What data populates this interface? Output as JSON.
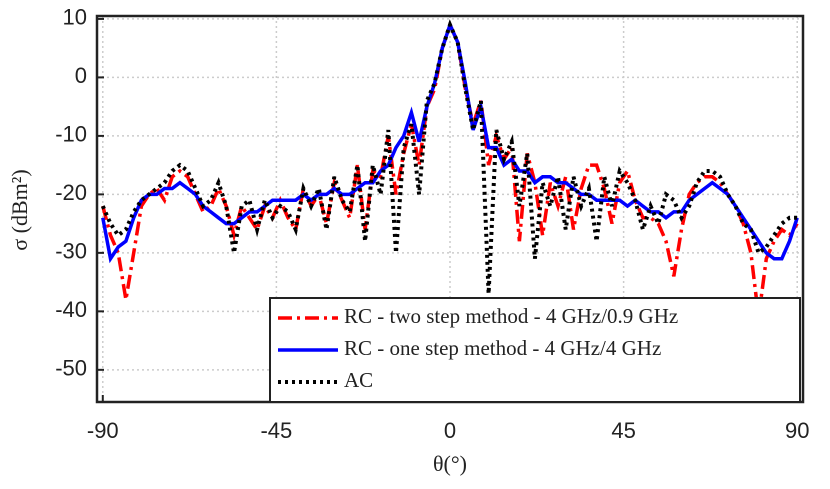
{
  "chart_data": {
    "type": "line",
    "xlabel": "θ(°)",
    "ylabel": "σ (dBm²)",
    "xlim": [
      -91.5,
      91.5
    ],
    "ylim": [
      -55.5,
      10.5
    ],
    "xticks": [
      -90,
      -45,
      0,
      45,
      90
    ],
    "yticks": [
      -50,
      -40,
      -30,
      -20,
      -10,
      0,
      10
    ],
    "grid": true,
    "legend": "lower center",
    "x": [
      -90,
      -88,
      -86,
      -84,
      -82,
      -80,
      -78,
      -76,
      -74,
      -72,
      -70,
      -68,
      -66,
      -64,
      -62,
      -60,
      -58,
      -56,
      -54,
      -52,
      -50,
      -48,
      -46,
      -44,
      -42,
      -40,
      -38,
      -36,
      -34,
      -32,
      -30,
      -28,
      -26,
      -24,
      -22,
      -20,
      -18,
      -16,
      -14,
      -12,
      -10,
      -8,
      -6,
      -4,
      -2,
      0,
      2,
      4,
      6,
      8,
      10,
      12,
      14,
      16,
      18,
      20,
      22,
      24,
      26,
      28,
      30,
      32,
      34,
      36,
      38,
      40,
      42,
      44,
      46,
      48,
      50,
      52,
      54,
      56,
      58,
      60,
      62,
      64,
      66,
      68,
      70,
      72,
      74,
      76,
      78,
      80,
      82,
      84,
      86,
      88,
      90
    ],
    "series": [
      {
        "name": "RC - two step method - 4 GHz/0.9 GHz",
        "color": "#ff0000",
        "style": "dashdot",
        "values": [
          -22,
          -27,
          -30,
          -38,
          -30,
          -22,
          -20,
          -19,
          -21,
          -17,
          -16,
          -17,
          -20,
          -23,
          -22,
          -19,
          -22,
          -27,
          -22,
          -24,
          -26,
          -22,
          -24,
          -21,
          -24,
          -26,
          -19,
          -22,
          -20,
          -25,
          -18,
          -21,
          -24,
          -15,
          -26,
          -16,
          -17,
          -10,
          -20,
          -13,
          -8,
          -15,
          -5,
          -2,
          5,
          9,
          6,
          -2,
          -8,
          -4,
          -15,
          -10,
          -14,
          -12,
          -28,
          -13,
          -18,
          -27,
          -18,
          -22,
          -17,
          -26,
          -19,
          -15,
          -15,
          -19,
          -25,
          -18,
          -16,
          -21,
          -24,
          -24,
          -25,
          -28,
          -34,
          -26,
          -20,
          -18,
          -17,
          -17,
          -18,
          -20,
          -22,
          -25,
          -30,
          -41,
          -31,
          -28,
          -26,
          -27,
          -25
        ]
      },
      {
        "name": "RC - one step method - 4 GHz/4 GHz",
        "color": "#0000ff",
        "style": "solid",
        "values": [
          -24,
          -31,
          -29,
          -28,
          -24,
          -21,
          -20,
          -20,
          -19,
          -19,
          -18,
          -19,
          -20,
          -22,
          -23,
          -24,
          -25,
          -25,
          -24,
          -23,
          -23,
          -22,
          -21,
          -21,
          -21,
          -21,
          -20,
          -21,
          -20,
          -20,
          -19,
          -20,
          -20,
          -19,
          -18,
          -18,
          -16,
          -15,
          -12,
          -10,
          -6,
          -11,
          -5,
          -1,
          5,
          9,
          6,
          -1,
          -9,
          -5,
          -12,
          -12,
          -15,
          -14,
          -16,
          -16,
          -18,
          -17,
          -17,
          -18,
          -18,
          -19,
          -20,
          -20,
          -21,
          -21,
          -21,
          -21,
          -22,
          -21,
          -22,
          -23,
          -23,
          -24,
          -23,
          -23,
          -21,
          -20,
          -19,
          -18,
          -19,
          -20,
          -22,
          -24,
          -26,
          -28,
          -30,
          -31,
          -31,
          -28,
          -24
        ]
      },
      {
        "name": "AC",
        "color": "#000000",
        "style": "dotted",
        "values": [
          -22,
          -25,
          -27,
          -26,
          -23,
          -21,
          -20,
          -19,
          -18,
          -16,
          -15,
          -16,
          -19,
          -22,
          -21,
          -18,
          -22,
          -30,
          -22,
          -21,
          -26,
          -21,
          -24,
          -22,
          -23,
          -26,
          -19,
          -22,
          -19,
          -26,
          -17,
          -21,
          -23,
          -15,
          -28,
          -15,
          -20,
          -9,
          -30,
          -12,
          -8,
          -20,
          -4,
          -1,
          5,
          9,
          6,
          -2,
          -9,
          -4,
          -37,
          -9,
          -14,
          -11,
          -22,
          -13,
          -31,
          -18,
          -22,
          -17,
          -26,
          -17,
          -22,
          -19,
          -28,
          -17,
          -22,
          -16,
          -18,
          -21,
          -26,
          -22,
          -25,
          -20,
          -21,
          -24,
          -22,
          -18,
          -16,
          -16,
          -17,
          -20,
          -22,
          -25,
          -26,
          -30,
          -29,
          -27,
          -25,
          -24,
          -24
        ]
      }
    ]
  }
}
